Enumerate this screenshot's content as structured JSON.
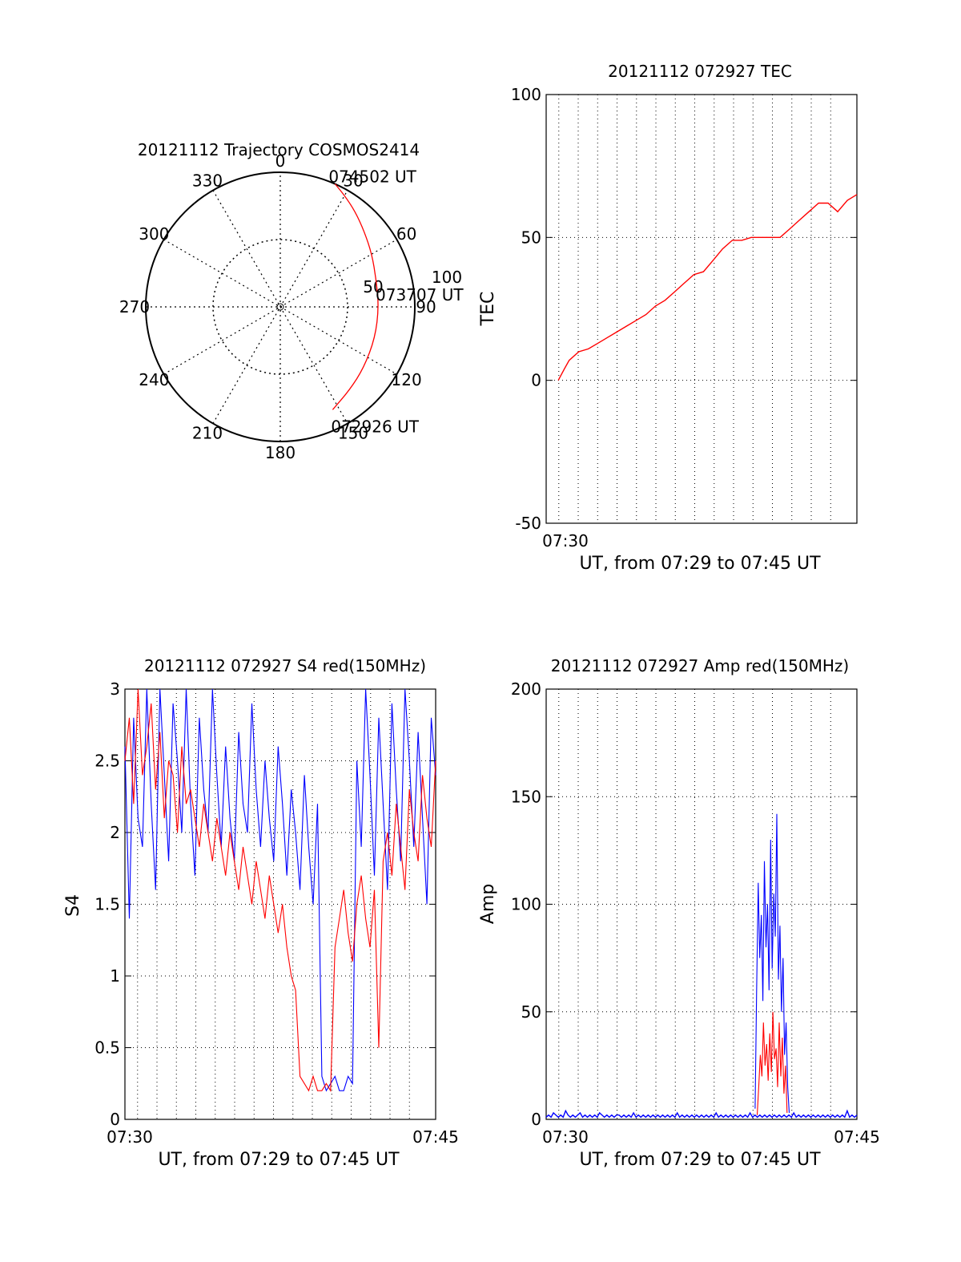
{
  "chart_data": [
    {
      "type": "polar",
      "title": "20121112 Trajectory COSMOS2414",
      "azimuth_labels": [
        "0",
        "30",
        "60",
        "90",
        "120",
        "150",
        "180",
        "210",
        "240",
        "270",
        "300",
        "330"
      ],
      "radial_tick_labels": [
        "50",
        "100"
      ],
      "track_color": "#ff0000",
      "track": [
        {
          "az": 153,
          "el_r": 96
        },
        {
          "az": 140,
          "el_r": 90
        },
        {
          "az": 126,
          "el_r": 86
        },
        {
          "az": 108,
          "el_r": 83
        },
        {
          "az": 90,
          "el_r": 82
        },
        {
          "az": 74,
          "el_r": 83
        },
        {
          "az": 60,
          "el_r": 88
        },
        {
          "az": 48,
          "el_r": 94
        },
        {
          "az": 38,
          "el_r": 101
        },
        {
          "az": 30,
          "el_r": 107
        },
        {
          "az": 24,
          "el_r": 112
        }
      ],
      "annotations": [
        {
          "text": "074502 UT",
          "az": 24,
          "r": 112
        },
        {
          "text": "073707 UT",
          "az": 90,
          "r": 82
        },
        {
          "text": "072926 UT",
          "az": 153,
          "r": 96
        }
      ]
    },
    {
      "type": "line",
      "title": "20121112 072927 TEC",
      "xlabel": "UT, from 07:29 to 07:45 UT",
      "ylabel": "TEC",
      "xlim": [
        7.48,
        7.75
      ],
      "ylim": [
        -50,
        100
      ],
      "yticks": [
        "100",
        "50",
        "0",
        "-50"
      ],
      "xtick_labels": [
        "07:30"
      ],
      "grid": true,
      "series": [
        {
          "color": "#ff0000",
          "x": [
            7.4905,
            7.4958,
            7.5,
            7.5083,
            7.5167,
            7.525,
            7.5333,
            7.5417,
            7.55,
            7.5583,
            7.5667,
            7.575,
            7.5833,
            7.5917,
            7.6,
            7.6083,
            7.6167,
            7.625,
            7.6333,
            7.6417,
            7.65,
            7.6583,
            7.6667,
            7.675,
            7.6833,
            7.6917,
            7.7,
            7.7083,
            7.7167,
            7.725,
            7.7333,
            7.7417,
            7.75
          ],
          "y": [
            0,
            4,
            7,
            10,
            11,
            13,
            15,
            17,
            19,
            21,
            23,
            26,
            28,
            31,
            34,
            37,
            38,
            42,
            46,
            49,
            49,
            50,
            50,
            50,
            50,
            53,
            56,
            59,
            62,
            62,
            59,
            63,
            65
          ]
        }
      ]
    },
    {
      "type": "line",
      "title": "20121112 072927 S4 red(150MHz)",
      "xlabel": "UT, from 07:29 to 07:45 UT",
      "ylabel": "S4",
      "xlim": [
        7.4905,
        7.75
      ],
      "ylim": [
        0,
        3
      ],
      "yticks": [
        "3",
        "2.5",
        "2",
        "1.5",
        "1",
        "0.5",
        "0"
      ],
      "xtick_labels": [
        "07:30",
        "07:45"
      ],
      "grid": true,
      "series": [
        {
          "color": "#0000ff",
          "x_start": 7.4905,
          "x_end": 7.75,
          "y": [
            2.6,
            1.4,
            2.8,
            2.1,
            1.9,
            3,
            2.2,
            1.6,
            3,
            2.4,
            1.8,
            2.9,
            2.5,
            2.0,
            3,
            2.2,
            1.7,
            2.8,
            2.3,
            2.0,
            3,
            2.4,
            1.9,
            2.6,
            2.1,
            1.8,
            2.7,
            2.2,
            2.0,
            2.9,
            2.3,
            1.9,
            2.5,
            2.1,
            1.8,
            2.6,
            2.2,
            1.7,
            2.3,
            2.0,
            1.6,
            2.4,
            1.9,
            1.5,
            2.2,
            0.3,
            0.2,
            0.25,
            0.3,
            0.2,
            0.2,
            0.3,
            0.25,
            2.5,
            1.9,
            3,
            2.4,
            1.7,
            2.8,
            2.2,
            1.6,
            2.9,
            2.3,
            1.8,
            3,
            2.5,
            1.9,
            2.7,
            2.1,
            1.5,
            2.8,
            2.4
          ]
        },
        {
          "color": "#ff0000",
          "x_start": 7.4905,
          "x_end": 7.75,
          "y": [
            2.5,
            2.8,
            2.2,
            3,
            2.4,
            2.6,
            2.9,
            2.3,
            2.7,
            2.1,
            2.5,
            2.4,
            2.0,
            2.6,
            2.2,
            2.3,
            2.1,
            1.9,
            2.2,
            2.0,
            1.8,
            2.1,
            1.9,
            1.7,
            2.0,
            1.8,
            1.6,
            1.9,
            1.7,
            1.5,
            1.8,
            1.6,
            1.4,
            1.7,
            1.5,
            1.3,
            1.5,
            1.2,
            1.0,
            0.9,
            0.3,
            0.25,
            0.2,
            0.3,
            0.2,
            0.2,
            0.25,
            0.2,
            1.2,
            1.4,
            1.6,
            1.3,
            1.1,
            1.5,
            1.7,
            1.4,
            1.2,
            1.6,
            0.5,
            1.8,
            2.0,
            1.7,
            2.2,
            1.9,
            1.6,
            2.3,
            2.0,
            1.8,
            2.4,
            2.1,
            1.9,
            2.5
          ]
        }
      ]
    },
    {
      "type": "line",
      "title": "20121112 072927 Amp red(150MHz)",
      "xlabel": "UT, from 07:29 to 07:45 UT",
      "ylabel": "Amp",
      "xlim": [
        7.4905,
        7.75
      ],
      "ylim": [
        0,
        200
      ],
      "yticks": [
        "200",
        "150",
        "100",
        "50",
        "0"
      ],
      "xtick_labels": [
        "07:30",
        "07:45"
      ],
      "grid": true,
      "series": [
        {
          "color": "#ff0000",
          "x_start": 7.6667,
          "x_end": 7.6917,
          "y": [
            2,
            15,
            30,
            20,
            45,
            25,
            35,
            18,
            40,
            22,
            50,
            28,
            33,
            15,
            45,
            20,
            38,
            12,
            25,
            3
          ]
        },
        {
          "color": "#0000ff",
          "x_start": 7.4905,
          "x_end": 7.75,
          "y": [
            1,
            2,
            1,
            3,
            2,
            1,
            2,
            1,
            4,
            2,
            1,
            2,
            1,
            2,
            3,
            1,
            2,
            1,
            2,
            1,
            2,
            1,
            3,
            2,
            1,
            2,
            1,
            2,
            1,
            2,
            2,
            1,
            2,
            1,
            2,
            1,
            3,
            1,
            2,
            1,
            2,
            1,
            2,
            1,
            2,
            1,
            2,
            1,
            2,
            1,
            2,
            1,
            2,
            1,
            3,
            1,
            2,
            1,
            2,
            1,
            2,
            1,
            2,
            1,
            2,
            1,
            2,
            1,
            2,
            1,
            3,
            1,
            2,
            1,
            2,
            1,
            2,
            1,
            2,
            1,
            2,
            1,
            2,
            1,
            3,
            1,
            2,
            1,
            2,
            1,
            2,
            1,
            2,
            1,
            2,
            1,
            2,
            1,
            2,
            1,
            2,
            1,
            3,
            1,
            2,
            1,
            2,
            1,
            2,
            1,
            2,
            1,
            2,
            1,
            2,
            1,
            2,
            1,
            2,
            1,
            2,
            1,
            2,
            1,
            4,
            1,
            2,
            1,
            2
          ]
        },
        {
          "color": "#0000ff",
          "x_start": 7.665,
          "x_end": 7.6935,
          "y": [
            5,
            60,
            110,
            75,
            95,
            55,
            120,
            80,
            100,
            60,
            130,
            70,
            105,
            85,
            142,
            65,
            90,
            50,
            75,
            30,
            45,
            15,
            3
          ]
        }
      ]
    }
  ]
}
